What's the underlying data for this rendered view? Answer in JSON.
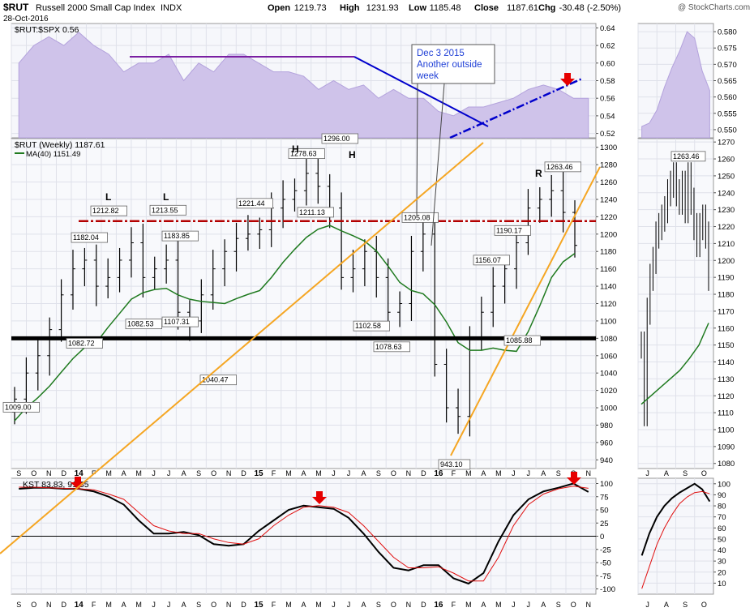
{
  "header": {
    "symbol": "$RUT",
    "name": "Russell 2000 Small Cap Index",
    "exchange": "INDX",
    "date": "28-Oct-2016",
    "watermark": "@ StockCharts.com",
    "ohlc": [
      {
        "label": "Open",
        "value": "1219.73"
      },
      {
        "label": "High",
        "value": "1231.93"
      },
      {
        "label": "Low",
        "value": "1185.48"
      },
      {
        "label": "Close",
        "value": "1187.61"
      },
      {
        "label": "Chg",
        "value": "-30.48 (-2.50%)"
      }
    ]
  },
  "colors": {
    "ratio_fill": "#cfc3ea",
    "ratio_line": "#b3a2dc",
    "price_bar": "#000000",
    "ma_line": "#1f7a1f",
    "support_line": "#000000",
    "resistance_line": "#b30000",
    "trendline_orange": "#f5a623",
    "trendline_blue": "#0000cc",
    "purple_line": "#7a1fa2",
    "kst_line": "#000000",
    "kst_signal": "#e01010",
    "arrow_red": "#e60000",
    "annotation_text": "#1f3fd6"
  },
  "chart_data": [
    {
      "type": "area",
      "panel": "ratio",
      "legend": "$RUT:$SPX 0.56",
      "ylim": [
        0.515,
        0.645
      ],
      "yticks": [
        "0.64",
        "0.62",
        "0.60",
        "0.58",
        "0.56",
        "0.54",
        "0.52"
      ],
      "x_labels": [
        "S",
        "O",
        "N",
        "D",
        "14",
        "F",
        "M",
        "A",
        "M",
        "J",
        "J",
        "A",
        "S",
        "O",
        "N",
        "D",
        "15",
        "F",
        "M",
        "A",
        "M",
        "J",
        "J",
        "A",
        "S",
        "O",
        "N",
        "D",
        "16",
        "F",
        "M",
        "A",
        "M",
        "J",
        "J",
        "A",
        "S",
        "O",
        "N"
      ],
      "approx_values": [
        0.6,
        0.62,
        0.63,
        0.62,
        0.635,
        0.62,
        0.61,
        0.59,
        0.6,
        0.6,
        0.61,
        0.58,
        0.6,
        0.59,
        0.61,
        0.61,
        0.6,
        0.59,
        0.59,
        0.585,
        0.57,
        0.58,
        0.57,
        0.575,
        0.56,
        0.57,
        0.56,
        0.56,
        0.545,
        0.54,
        0.55,
        0.55,
        0.555,
        0.56,
        0.57,
        0.575,
        0.57,
        0.56,
        0.56
      ],
      "annotations": {
        "box": [
          "Dec 3 2015",
          "Another outside",
          "week"
        ]
      }
    },
    {
      "type": "bar",
      "subtype": "ohlc_weekly",
      "panel": "price",
      "legend": "$RUT (Weekly) 1187.61",
      "ma_legend": "MA(40) 1151.49",
      "ylim": [
        930,
        1310
      ],
      "yticks": [
        "1300",
        "1280",
        "1260",
        "1240",
        "1220",
        "1200",
        "1180",
        "1160",
        "1140",
        "1120",
        "1100",
        "1080",
        "1060",
        "1040",
        "1020",
        "1000",
        "980",
        "960",
        "940"
      ],
      "x_labels": [
        "S",
        "O",
        "N",
        "D",
        "14",
        "F",
        "M",
        "A",
        "M",
        "J",
        "J",
        "A",
        "S",
        "O",
        "N",
        "D",
        "15",
        "F",
        "M",
        "A",
        "M",
        "J",
        "J",
        "A",
        "S",
        "O",
        "N",
        "D",
        "16",
        "F",
        "M",
        "A",
        "M",
        "J",
        "J",
        "A",
        "S",
        "O",
        "N"
      ],
      "approx_closes": [
        1010,
        1040,
        1060,
        1090,
        1130,
        1160,
        1170,
        1140,
        1150,
        1170,
        1190,
        1150,
        1160,
        1170,
        1110,
        1100,
        1130,
        1160,
        1180,
        1195,
        1200,
        1205,
        1230,
        1240,
        1250,
        1270,
        1255,
        1230,
        1150,
        1160,
        1180,
        1150,
        1110,
        1120,
        1180,
        1200,
        1050,
        1000,
        990,
        1080,
        1110,
        1140,
        1160,
        1190,
        1230,
        1240,
        1250,
        1225,
        1187
      ],
      "support_level": 1080,
      "resistance_level": 1215,
      "labels": [
        {
          "text": "1009.00",
          "value": 1009
        },
        {
          "text": "1082.72",
          "value": 1082.72
        },
        {
          "text": "1182.04",
          "value": 1182.04
        },
        {
          "text": "1212.82",
          "value": 1212.82
        },
        {
          "text": "1082.53",
          "value": 1082.53
        },
        {
          "text": "1213.55",
          "value": 1213.55
        },
        {
          "text": "1107.31",
          "value": 1107.31
        },
        {
          "text": "1183.85",
          "value": 1183.85
        },
        {
          "text": "1040.47",
          "value": 1040.47
        },
        {
          "text": "1221.44",
          "value": 1221.44
        },
        {
          "text": "1278.63",
          "value": 1278.63
        },
        {
          "text": "1211.13",
          "value": 1211.13
        },
        {
          "text": "1296.00",
          "value": 1296
        },
        {
          "text": "1102.58",
          "value": 1102.58
        },
        {
          "text": "1078.63",
          "value": 1078.63
        },
        {
          "text": "1205.08",
          "value": 1205.08
        },
        {
          "text": "943.10",
          "value": 943.1
        },
        {
          "text": "1156.07",
          "value": 1156.07
        },
        {
          "text": "1190.17",
          "value": 1190.17
        },
        {
          "text": "1085.88",
          "value": 1085.88
        },
        {
          "text": "1263.46",
          "value": 1263.46
        }
      ],
      "pattern_letters": [
        "L",
        "L",
        "H",
        "H",
        "R"
      ]
    },
    {
      "type": "line",
      "panel": "kst",
      "legend": "KST 83.83, 91.35",
      "ylim": [
        -110,
        110
      ],
      "yticks": [
        "100",
        "75",
        "50",
        "25",
        "0",
        "-25",
        "-50",
        "-75",
        "-100"
      ],
      "x_labels": [
        "S",
        "O",
        "N",
        "D",
        "14",
        "F",
        "M",
        "A",
        "M",
        "J",
        "J",
        "A",
        "S",
        "O",
        "N",
        "D",
        "15",
        "F",
        "M",
        "A",
        "M",
        "J",
        "J",
        "A",
        "S",
        "O",
        "N",
        "D",
        "16",
        "F",
        "M",
        "A",
        "M",
        "J",
        "J",
        "A",
        "S",
        "O",
        "N"
      ],
      "series": [
        {
          "name": "KST",
          "approx_values": [
            90,
            92,
            92,
            90,
            90,
            85,
            75,
            60,
            30,
            5,
            5,
            8,
            2,
            -15,
            -18,
            -15,
            10,
            30,
            50,
            58,
            55,
            52,
            35,
            5,
            -30,
            -60,
            -65,
            -55,
            -55,
            -80,
            -90,
            -70,
            -10,
            40,
            70,
            85,
            92,
            100,
            84
          ]
        },
        {
          "name": "Signal",
          "approx_values": [
            93,
            93,
            92,
            91,
            90,
            88,
            80,
            70,
            45,
            20,
            10,
            5,
            5,
            -5,
            -12,
            -15,
            -5,
            20,
            40,
            55,
            58,
            55,
            45,
            20,
            -10,
            -40,
            -60,
            -60,
            -58,
            -70,
            -85,
            -85,
            -40,
            20,
            60,
            80,
            90,
            95,
            91
          ]
        }
      ]
    },
    {
      "type": "area",
      "panel": "ratio_zoom",
      "yticks": [
        "0.580",
        "0.575",
        "0.570",
        "0.565",
        "0.560",
        "0.555",
        "0.550"
      ],
      "ylim": [
        0.5475,
        0.5825
      ],
      "x_labels": [
        "J",
        "A",
        "S",
        "O"
      ],
      "approx_values": [
        0.551,
        0.552,
        0.556,
        0.563,
        0.569,
        0.574,
        0.58,
        0.578,
        0.568,
        0.562
      ]
    },
    {
      "type": "bar",
      "subtype": "ohlc_daily",
      "panel": "price_zoom",
      "ylim": [
        1077,
        1272
      ],
      "yticks": [
        "1270",
        "1260",
        "1250",
        "1240",
        "1230",
        "1220",
        "1210",
        "1200",
        "1190",
        "1180",
        "1170",
        "1160",
        "1150",
        "1140",
        "1130",
        "1120",
        "1110",
        "1100",
        "1090",
        "1080"
      ],
      "x_labels": [
        "J",
        "A",
        "S",
        "O"
      ],
      "label": {
        "text": "1263.46",
        "value": 1263.46
      },
      "approx_closes": [
        1150,
        1110,
        1170,
        1190,
        1200,
        1215,
        1220,
        1225,
        1230,
        1240,
        1245,
        1250,
        1240,
        1235,
        1245,
        1230,
        1250,
        1235,
        1220,
        1210,
        1220,
        1225,
        1215,
        1190
      ],
      "ma_approx": [
        1115,
        1120,
        1125,
        1130,
        1135,
        1142,
        1150,
        1163
      ]
    },
    {
      "type": "line",
      "panel": "kst_zoom",
      "yticks": [
        "100",
        "90",
        "80",
        "70",
        "60",
        "50",
        "40",
        "30",
        "20",
        "10"
      ],
      "ylim": [
        0,
        105
      ],
      "x_labels": [
        "J",
        "A",
        "S",
        "O"
      ],
      "series": [
        {
          "name": "KST",
          "approx_values": [
            35,
            55,
            70,
            80,
            87,
            92,
            96,
            100,
            95,
            84
          ]
        },
        {
          "name": "Signal",
          "approx_values": [
            5,
            25,
            45,
            60,
            72,
            82,
            88,
            92,
            93,
            91
          ]
        }
      ]
    }
  ]
}
